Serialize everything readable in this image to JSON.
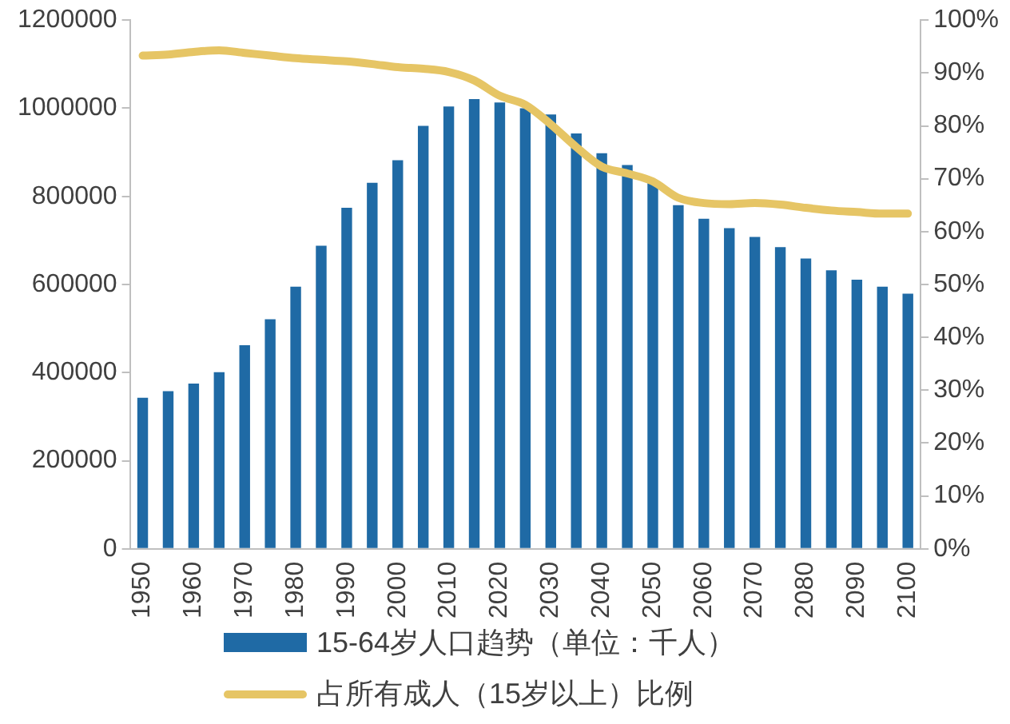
{
  "chart_data": {
    "type": "bar",
    "categories": [
      "1950",
      null,
      "1960",
      null,
      "1970",
      null,
      "1980",
      null,
      "1990",
      null,
      "2000",
      null,
      "2010",
      null,
      "2020",
      null,
      "2030",
      null,
      "2040",
      null,
      "2050",
      null,
      "2060",
      null,
      "2070",
      null,
      "2080",
      null,
      "2090",
      null,
      "2100"
    ],
    "series": [
      {
        "name": "15-64岁人口趋势（单位：千人）",
        "color": "#1f6aa5",
        "values": [
          343000,
          358000,
          375000,
          401000,
          462000,
          521000,
          595000,
          688000,
          774000,
          831000,
          882000,
          960000,
          1004000,
          1021000,
          1013000,
          1000000,
          986000,
          943000,
          898000,
          871000,
          830000,
          780000,
          749000,
          728000,
          708000,
          685000,
          659000,
          632000,
          611000,
          595000,
          579000
        ]
      },
      {
        "name": "占所有成人（15岁以上）比例",
        "type": "line",
        "axis": "y2",
        "color": "#e6c565",
        "values": [
          93.3,
          93.5,
          94.0,
          94.3,
          93.8,
          93.3,
          92.8,
          92.5,
          92.2,
          91.7,
          91.1,
          90.8,
          90.2,
          88.6,
          85.7,
          84.0,
          80.3,
          76.0,
          72.3,
          71.0,
          69.5,
          66.4,
          65.4,
          65.2,
          65.4,
          65.1,
          64.5,
          64.0,
          63.7,
          63.4,
          63.4
        ]
      }
    ],
    "ylim": [
      0,
      1200000
    ],
    "yticks": [
      0,
      200000,
      400000,
      600000,
      800000,
      1000000,
      1200000
    ],
    "y2lim": [
      0,
      100
    ],
    "y2ticks": [
      {
        "value": 0,
        "label": "0%"
      },
      {
        "value": 10,
        "label": "10%"
      },
      {
        "value": 20,
        "label": "20%"
      },
      {
        "value": 30,
        "label": "30%"
      },
      {
        "value": 40,
        "label": "40%"
      },
      {
        "value": 50,
        "label": "50%"
      },
      {
        "value": 60,
        "label": "60%"
      },
      {
        "value": 70,
        "label": "70%"
      },
      {
        "value": 80,
        "label": "80%"
      },
      {
        "value": 90,
        "label": "90%"
      },
      {
        "value": 100,
        "label": "100%"
      }
    ],
    "grid": false,
    "legend": "bottom",
    "marker": "none",
    "line_style": "solid"
  }
}
